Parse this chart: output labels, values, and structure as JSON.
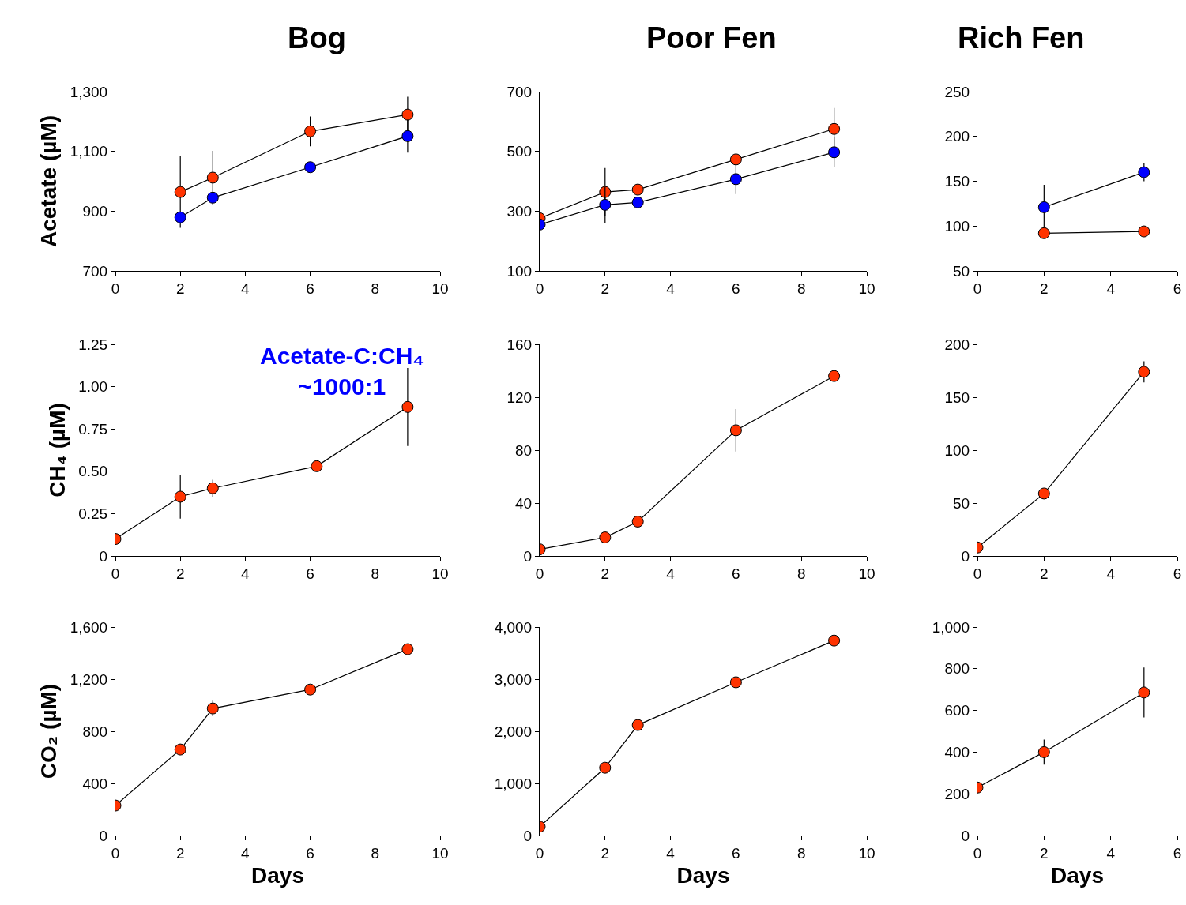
{
  "chart_data": [
    {
      "type": "line",
      "title": "Bog",
      "ylabel": "Acetate (µM)",
      "x": [
        2,
        3,
        6,
        9
      ],
      "marker": "circle",
      "xlim": [
        0,
        10
      ],
      "xticks": [
        0,
        2,
        4,
        6,
        8,
        10
      ],
      "ylim": [
        700,
        1300
      ],
      "yticks": [
        700,
        900,
        {
          "value": 1100,
          "label": "1,100"
        },
        {
          "value": 1300,
          "label": "1,300"
        }
      ],
      "series": [
        {
          "color": "#ff3300",
          "values": [
            964,
            1012,
            1167,
            1223
          ],
          "errors": [
            120,
            90,
            50,
            60
          ]
        },
        {
          "color": "#0000ff",
          "values": [
            879,
            945,
            1047,
            1151
          ],
          "errors": [
            null,
            null,
            null,
            55
          ]
        }
      ]
    },
    {
      "type": "line",
      "title": "Poor Fen",
      "x": [
        0,
        2,
        3,
        6,
        9
      ],
      "marker": "circle",
      "xlim": [
        0,
        10
      ],
      "xticks": [
        0,
        2,
        4,
        6,
        8,
        10
      ],
      "ylim": [
        100,
        700
      ],
      "yticks": [
        100,
        300,
        500,
        700
      ],
      "series": [
        {
          "color": "#ff3300",
          "values": [
            276,
            364,
            372,
            473,
            575
          ],
          "errors": [
            null,
            80,
            null,
            null,
            70
          ]
        },
        {
          "color": "#0000ff",
          "values": [
            255,
            321,
            329,
            407,
            497
          ],
          "errors": [
            null,
            60,
            null,
            50,
            50
          ]
        }
      ]
    },
    {
      "type": "line",
      "title": "Rich Fen",
      "x": [
        2,
        5
      ],
      "marker": "circle",
      "xlim": [
        0,
        6
      ],
      "xticks": [
        0,
        2,
        4,
        6
      ],
      "ylim": [
        50,
        250
      ],
      "yticks": [
        50,
        100,
        150,
        200,
        250
      ],
      "series": [
        {
          "color": "#0000ff",
          "values": [
            121,
            160
          ],
          "errors": [
            25,
            10
          ]
        },
        {
          "color": "#ff3300",
          "values": [
            92,
            94
          ]
        }
      ]
    },
    {
      "type": "line",
      "ylabel": "CH₄ (µM)",
      "x": [
        0,
        2,
        3,
        6.2,
        9
      ],
      "marker": "circle",
      "xlim": [
        0,
        10
      ],
      "xticks": [
        0,
        2,
        4,
        6,
        8,
        10
      ],
      "ylim": [
        0,
        1.25
      ],
      "yticks": [
        0,
        0.25,
        {
          "value": 0.5,
          "label": "0.50"
        },
        0.75,
        {
          "value": 1,
          "label": "1.00"
        },
        1.25
      ],
      "annotations": [
        "Acetate-C:CH₄\n~1000:1"
      ],
      "series": [
        {
          "color": "#ff3300",
          "values": [
            0.1,
            0.35,
            0.4,
            0.53,
            0.88
          ],
          "errors": [
            null,
            0.13,
            0.05,
            0.03,
            0.23
          ]
        }
      ]
    },
    {
      "type": "line",
      "x": [
        0,
        2,
        3,
        6,
        9
      ],
      "marker": "circle",
      "xlim": [
        0,
        10
      ],
      "xticks": [
        0,
        2,
        4,
        6,
        8,
        10
      ],
      "ylim": [
        0,
        160
      ],
      "yticks": [
        0,
        40,
        80,
        120,
        160
      ],
      "series": [
        {
          "color": "#ff3300",
          "values": [
            5,
            14,
            26,
            95,
            136
          ],
          "errors": [
            null,
            null,
            null,
            16,
            null
          ]
        }
      ]
    },
    {
      "type": "line",
      "x": [
        0,
        2,
        5
      ],
      "marker": "circle",
      "xlim": [
        0,
        6
      ],
      "xticks": [
        0,
        2,
        4,
        6
      ],
      "ylim": [
        0,
        200
      ],
      "yticks": [
        0,
        50,
        100,
        150,
        200
      ],
      "series": [
        {
          "color": "#ff3300",
          "values": [
            8,
            59,
            174
          ],
          "errors": [
            null,
            null,
            10
          ]
        }
      ]
    },
    {
      "type": "line",
      "ylabel": "CO₂ (µM)",
      "xlabel": "Days",
      "x": [
        0,
        2,
        3,
        6,
        9
      ],
      "marker": "circle",
      "xlim": [
        0,
        10
      ],
      "xticks": [
        0,
        2,
        4,
        6,
        8,
        10
      ],
      "ylim": [
        0,
        1600
      ],
      "yticks": [
        0,
        400,
        800,
        {
          "value": 1200,
          "label": "1,200"
        },
        {
          "value": 1600,
          "label": "1,600"
        }
      ],
      "series": [
        {
          "color": "#ff3300",
          "values": [
            230,
            660,
            975,
            1120,
            1430
          ],
          "errors": [
            null,
            40,
            60,
            null,
            null
          ]
        }
      ]
    },
    {
      "type": "line",
      "xlabel": "Days",
      "x": [
        0,
        2,
        3,
        6,
        9
      ],
      "marker": "circle",
      "xlim": [
        0,
        10
      ],
      "xticks": [
        0,
        2,
        4,
        6,
        8,
        10
      ],
      "ylim": [
        0,
        4000
      ],
      "yticks": [
        0,
        {
          "value": 1000,
          "label": "1,000"
        },
        {
          "value": 2000,
          "label": "2,000"
        },
        {
          "value": 3000,
          "label": "3,000"
        },
        {
          "value": 4000,
          "label": "4,000"
        }
      ],
      "series": [
        {
          "color": "#ff3300",
          "values": [
            170,
            1300,
            2120,
            2940,
            3740
          ],
          "errors": [
            null,
            null,
            60,
            100,
            null
          ]
        }
      ]
    },
    {
      "type": "line",
      "xlabel": "Days",
      "x": [
        0,
        2,
        5
      ],
      "marker": "circle",
      "xlim": [
        0,
        6
      ],
      "xticks": [
        0,
        2,
        4,
        6
      ],
      "ylim": [
        0,
        1000
      ],
      "yticks": [
        0,
        200,
        400,
        600,
        800,
        {
          "value": 1000,
          "label": "1,000"
        }
      ],
      "series": [
        {
          "color": "#ff3300",
          "values": [
            230,
            400,
            686
          ],
          "errors": [
            null,
            60,
            120
          ]
        }
      ]
    }
  ]
}
